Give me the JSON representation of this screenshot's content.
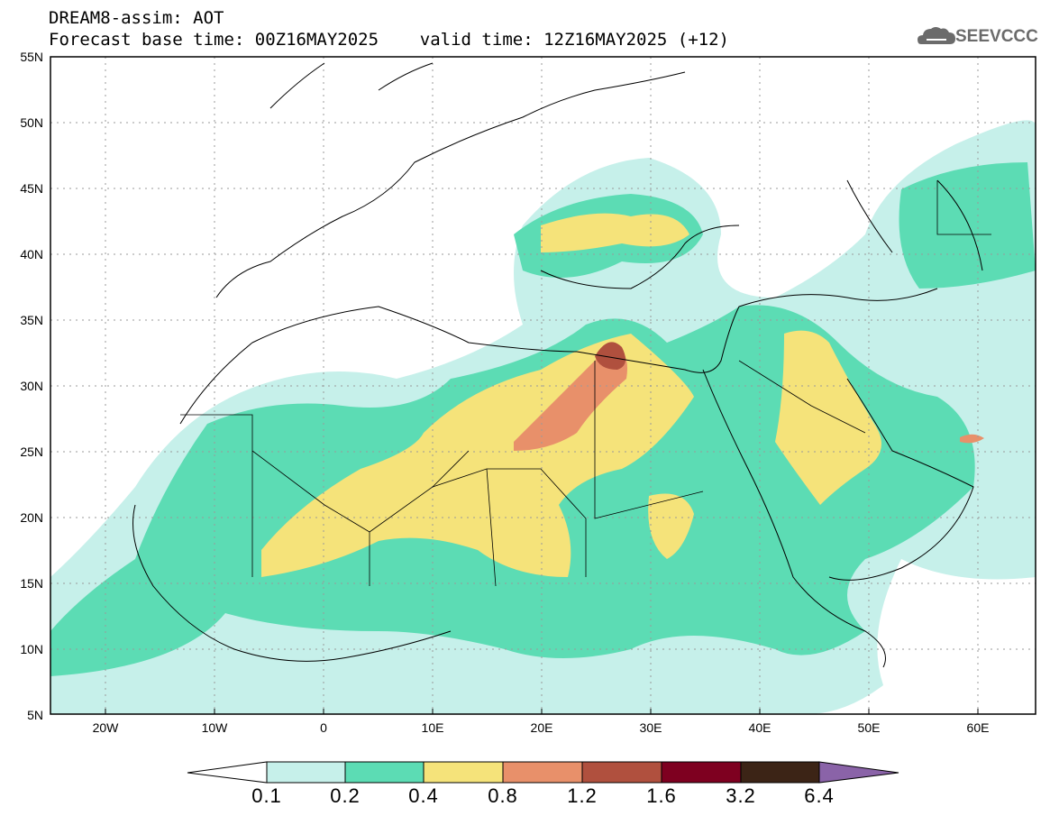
{
  "header": {
    "title": "DREAM8-assim: AOT",
    "subtitle": "Forecast base time: 00Z16MAY2025    valid time: 12Z16MAY2025 (+12)"
  },
  "logo": {
    "text": "SEEVCCC",
    "icon": "cloud-icon",
    "color": "#6b6b6b"
  },
  "map": {
    "lat_labels": [
      "55N",
      "50N",
      "45N",
      "40N",
      "35N",
      "30N",
      "25N",
      "20N",
      "15N",
      "10N",
      "5N"
    ],
    "lon_labels": [
      "20W",
      "10W",
      "0",
      "10E",
      "20E",
      "30E",
      "40E",
      "50E",
      "60E"
    ],
    "lat_range": [
      5,
      55
    ],
    "lon_range": [
      -25,
      65
    ],
    "grid": true
  },
  "colorbar": {
    "labels": [
      "0.1",
      "0.2",
      "0.4",
      "0.8",
      "1.2",
      "1.6",
      "3.2",
      "6.4"
    ],
    "colors": [
      "#ffffff",
      "#c6f0ea",
      "#5cdcb4",
      "#f5e37a",
      "#e8906a",
      "#b0503e",
      "#7e0020",
      "#3c2416",
      "#8a63a8"
    ]
  }
}
